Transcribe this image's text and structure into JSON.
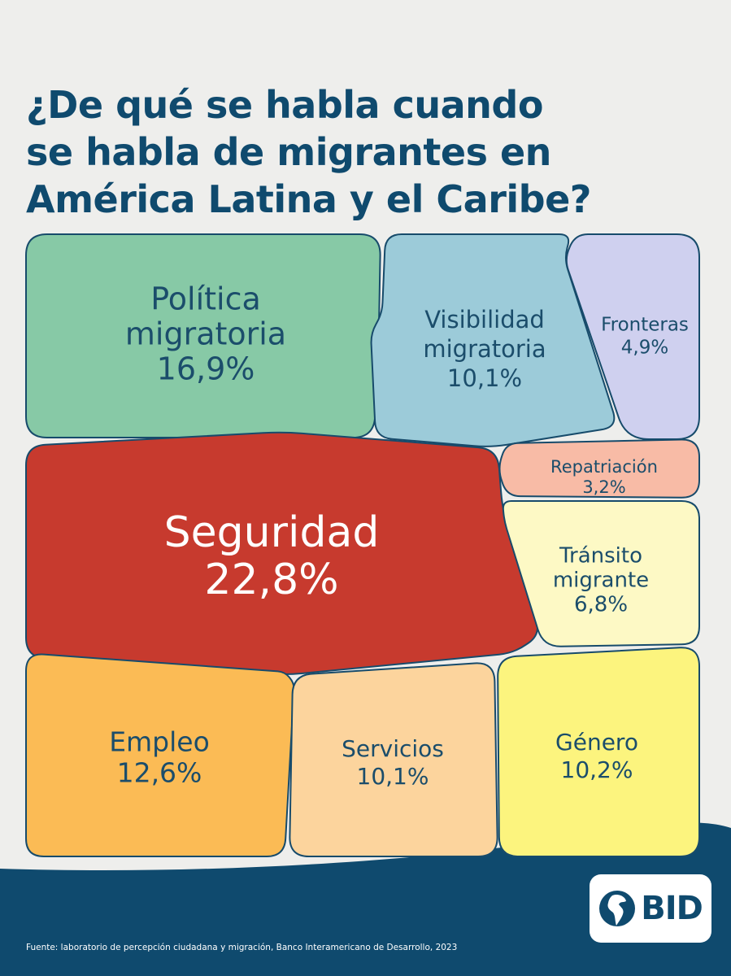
{
  "title": {
    "line1": "¿De qué se habla cuando",
    "line2": "se habla de migrantes en",
    "line3": "América Latina y el Caribe?"
  },
  "chart_data": {
    "type": "treemap",
    "unit": "%",
    "segments": [
      {
        "label_lines": [
          "Política",
          "migratoria"
        ],
        "value": 16.9,
        "value_label": "16,9%",
        "color": "#87c9a6"
      },
      {
        "label_lines": [
          "Visibilidad",
          "migratoria"
        ],
        "value": 10.1,
        "value_label": "10,1%",
        "color": "#9ccbd9"
      },
      {
        "label_lines": [
          "Fronteras"
        ],
        "value": 4.9,
        "value_label": "4,9%",
        "color": "#cfd0ef"
      },
      {
        "label_lines": [
          "Seguridad"
        ],
        "value": 22.8,
        "value_label": "22,8%",
        "color": "#c73a2e"
      },
      {
        "label_lines": [
          "Repatriación"
        ],
        "value": 3.2,
        "value_label": "3,2%",
        "color": "#f8bba6"
      },
      {
        "label_lines": [
          "Tránsito",
          "migrante"
        ],
        "value": 6.8,
        "value_label": "6,8%",
        "color": "#fdf9c5"
      },
      {
        "label_lines": [
          "Empleo"
        ],
        "value": 12.6,
        "value_label": "12,6%",
        "color": "#fbbb55"
      },
      {
        "label_lines": [
          "Servicios"
        ],
        "value": 10.1,
        "value_label": "10,1%",
        "color": "#fcd49d"
      },
      {
        "label_lines": [
          "Género"
        ],
        "value": 10.2,
        "value_label": "10,2%",
        "color": "#fcf47e"
      }
    ]
  },
  "colors": {
    "title": "#0f4a6e",
    "outline": "#174b6b",
    "text_dark": "#1b4d6b",
    "text_light": "#ffffff",
    "wave": "#0f4a6e"
  },
  "logo": {
    "text": "BID",
    "icon": "americas-globe-icon"
  },
  "source": "Fuente: laboratorio de percepción ciudadana y migración, Banco Interamericano de Desarrollo, 2023"
}
